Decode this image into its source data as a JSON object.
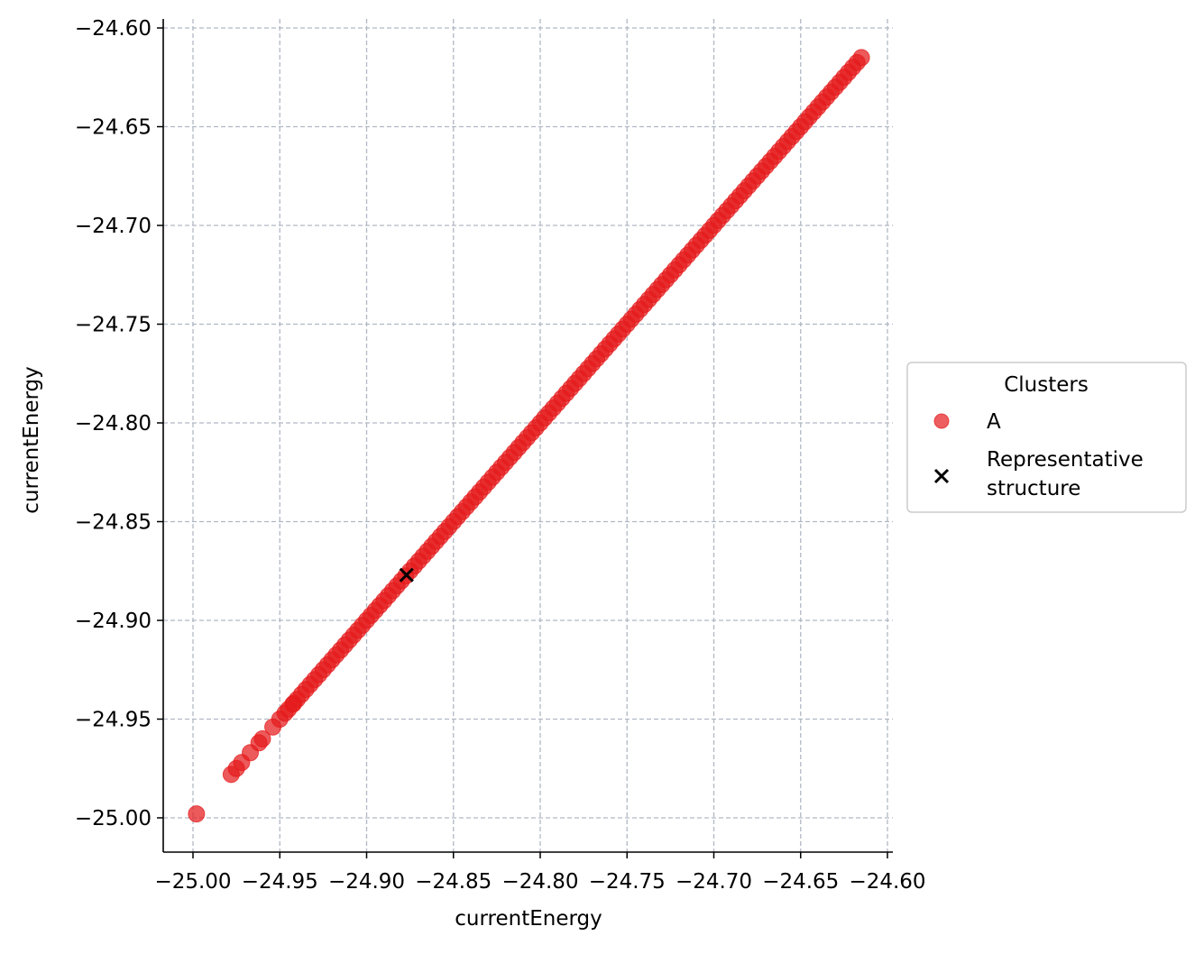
{
  "chart_data": {
    "type": "scatter",
    "xlabel": "currentEnergy",
    "ylabel": "currentEnergy",
    "xlim": [
      -25.017,
      -24.598
    ],
    "ylim": [
      -25.017,
      -24.598
    ],
    "xticks": [
      -25.0,
      -24.95,
      -24.9,
      -24.85,
      -24.8,
      -24.75,
      -24.7,
      -24.65,
      -24.6
    ],
    "yticks": [
      -25.0,
      -24.95,
      -24.9,
      -24.85,
      -24.8,
      -24.75,
      -24.7,
      -24.65,
      -24.6
    ],
    "xtick_labels": [
      "−25.00",
      "−24.95",
      "−24.90",
      "−24.85",
      "−24.80",
      "−24.75",
      "−24.70",
      "−24.65",
      "−24.60"
    ],
    "ytick_labels": [
      "−25.00",
      "−24.95",
      "−24.90",
      "−24.85",
      "−24.80",
      "−24.75",
      "−24.70",
      "−24.65",
      "−24.60"
    ],
    "grid": true,
    "legend": {
      "title": "Clusters",
      "placement": "outside-right",
      "entries": [
        {
          "label": "A",
          "marker": "circle",
          "color": "#e41a1c"
        },
        {
          "label_lines": [
            "Representative",
            "structure"
          ],
          "marker": "x",
          "color": "#000000"
        }
      ]
    },
    "series": [
      {
        "name": "A",
        "color": "#e41a1c",
        "points": [
          [
            -24.998,
            -24.998
          ],
          [
            -24.978,
            -24.978
          ],
          [
            -24.975,
            -24.975
          ],
          [
            -24.972,
            -24.972
          ],
          [
            -24.967,
            -24.967
          ],
          [
            -24.962,
            -24.962
          ],
          [
            -24.96,
            -24.96
          ],
          [
            -24.954,
            -24.954
          ],
          [
            -24.95,
            -24.95
          ],
          [
            -24.947,
            -24.947
          ],
          [
            -24.942,
            -24.942
          ]
        ],
        "dense_segments": [
          {
            "from": -24.945,
            "to": -24.615,
            "step": 0.0025
          }
        ]
      },
      {
        "name": "Representative structure",
        "color": "#000000",
        "marker": "x",
        "points": [
          [
            -24.877,
            -24.877
          ]
        ]
      }
    ]
  }
}
